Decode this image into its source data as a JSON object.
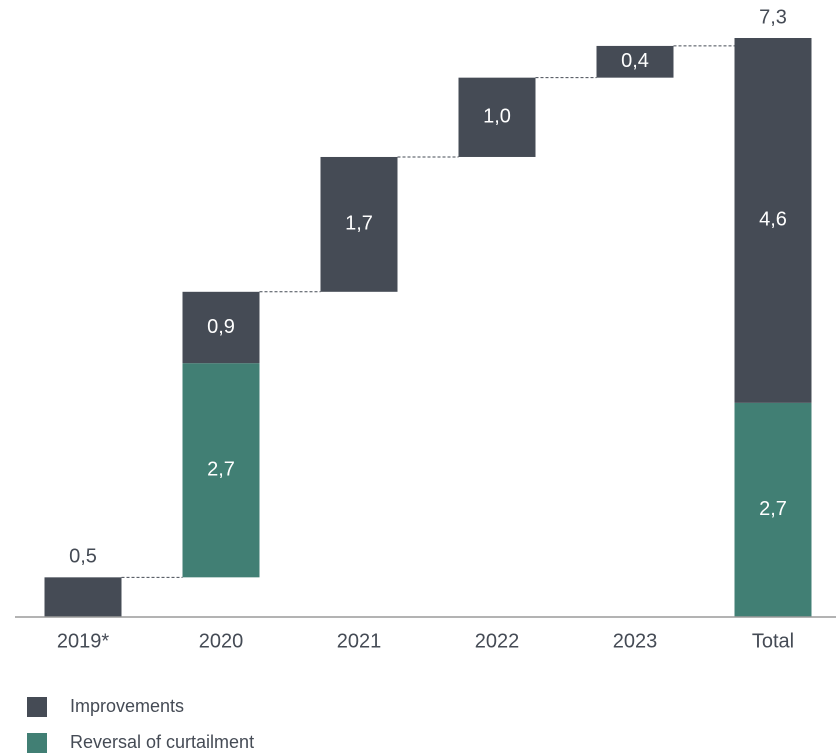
{
  "chart_data": {
    "type": "waterfall",
    "categories": [
      "2019*",
      "2020",
      "2021",
      "2022",
      "2023",
      "Total"
    ],
    "series": [
      {
        "name": "Improvements",
        "color": "#454b55",
        "values": [
          0.5,
          0.9,
          1.7,
          1.0,
          0.4,
          4.6
        ],
        "value_labels": [
          "0,5",
          "0,9",
          "1,7",
          "1,0",
          "0,4",
          "4,6"
        ]
      },
      {
        "name": "Reversal of curtailment",
        "color": "#417f74",
        "values": [
          null,
          2.7,
          null,
          null,
          null,
          2.7
        ],
        "value_labels": [
          null,
          "2,7",
          null,
          null,
          null,
          "2,7"
        ]
      }
    ],
    "total": {
      "value": 7.3,
      "label": "7,3"
    }
  }
}
